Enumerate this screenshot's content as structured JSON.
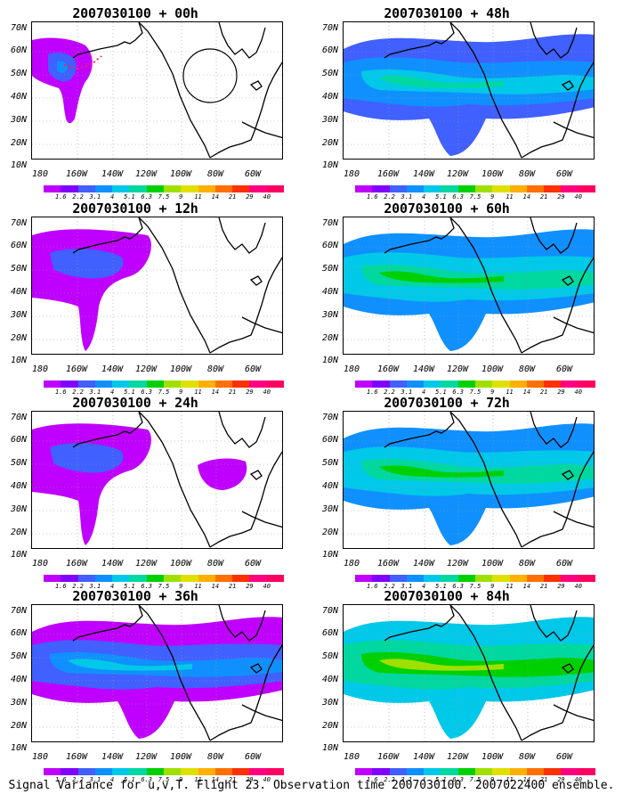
{
  "panels": [
    {
      "title": "2007030100 + 00h",
      "lead_hours": 0,
      "variance_level": 1
    },
    {
      "title": "2007030100 + 48h",
      "lead_hours": 48,
      "variance_level": 4
    },
    {
      "title": "2007030100 + 12h",
      "lead_hours": 12,
      "variance_level": 2
    },
    {
      "title": "2007030100 + 60h",
      "lead_hours": 60,
      "variance_level": 5
    },
    {
      "title": "2007030100 + 24h",
      "lead_hours": 24,
      "variance_level": 2
    },
    {
      "title": "2007030100 + 72h",
      "lead_hours": 72,
      "variance_level": 5
    },
    {
      "title": "2007030100 + 36h",
      "lead_hours": 36,
      "variance_level": 3
    },
    {
      "title": "2007030100 + 84h",
      "lead_hours": 84,
      "variance_level": 6
    }
  ],
  "axes": {
    "lat_labels": [
      "70N",
      "60N",
      "50N",
      "40N",
      "30N",
      "20N",
      "10N"
    ],
    "lon_labels": [
      "180",
      "160W",
      "140W",
      "120W",
      "100W",
      "80W",
      "60W"
    ]
  },
  "colorbar": {
    "ticks": [
      "1.6",
      "2.2",
      "3.1",
      "4",
      "5.1",
      "6.3",
      "7.5",
      "9",
      "11",
      "14",
      "21",
      "29",
      "40"
    ],
    "colors": [
      "#c000ff",
      "#8000ff",
      "#4060ff",
      "#1090ff",
      "#00c8e8",
      "#00d8a0",
      "#00d000",
      "#a0e000",
      "#e0e000",
      "#ffb000",
      "#ff7000",
      "#ff3000",
      "#ff0080",
      "#ff0060"
    ]
  },
  "caption": "Signal Variance for u,v,T. Flight 23. Observation time 2007030100. 2007022400 ensemble."
}
